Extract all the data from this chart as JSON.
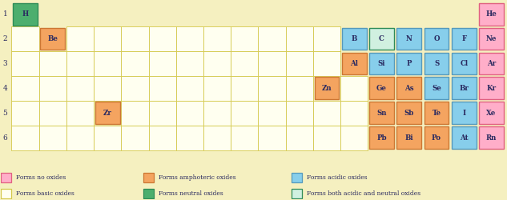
{
  "background_color": "#f5f0c0",
  "grid_color": "#d4c84a",
  "row_labels": [
    "1",
    "2",
    "3",
    "4",
    "5",
    "6"
  ],
  "colors": {
    "no_oxide": "#ffaec9",
    "amphoteric": "#f4a460",
    "acidic": "#87ceeb",
    "basic": "#fffff0",
    "neutral": "#4cae6e",
    "both": "#d0f0e0"
  },
  "border_colors": {
    "no_oxide": "#e06080",
    "amphoteric": "#cc7733",
    "acidic": "#5599bb",
    "basic": "#d4c84a",
    "neutral": "#2e8b57",
    "both": "#2e8b57"
  },
  "elements": [
    {
      "symbol": "H",
      "row": 0,
      "col": 0,
      "color": "neutral"
    },
    {
      "symbol": "He",
      "row": 0,
      "col": 17,
      "color": "no_oxide"
    },
    {
      "symbol": "Be",
      "row": 1,
      "col": 1,
      "color": "amphoteric"
    },
    {
      "symbol": "B",
      "row": 1,
      "col": 12,
      "color": "acidic"
    },
    {
      "symbol": "C",
      "row": 1,
      "col": 13,
      "color": "both"
    },
    {
      "symbol": "N",
      "row": 1,
      "col": 14,
      "color": "acidic"
    },
    {
      "symbol": "O",
      "row": 1,
      "col": 15,
      "color": "acidic"
    },
    {
      "symbol": "F",
      "row": 1,
      "col": 16,
      "color": "acidic"
    },
    {
      "symbol": "Ne",
      "row": 1,
      "col": 17,
      "color": "no_oxide"
    },
    {
      "symbol": "Al",
      "row": 2,
      "col": 12,
      "color": "amphoteric"
    },
    {
      "symbol": "Si",
      "row": 2,
      "col": 13,
      "color": "acidic"
    },
    {
      "symbol": "P",
      "row": 2,
      "col": 14,
      "color": "acidic"
    },
    {
      "symbol": "S",
      "row": 2,
      "col": 15,
      "color": "acidic"
    },
    {
      "symbol": "Cl",
      "row": 2,
      "col": 16,
      "color": "acidic"
    },
    {
      "symbol": "Ar",
      "row": 2,
      "col": 17,
      "color": "no_oxide"
    },
    {
      "symbol": "Zn",
      "row": 3,
      "col": 11,
      "color": "amphoteric"
    },
    {
      "symbol": "Ge",
      "row": 3,
      "col": 13,
      "color": "amphoteric"
    },
    {
      "symbol": "As",
      "row": 3,
      "col": 14,
      "color": "amphoteric"
    },
    {
      "symbol": "Se",
      "row": 3,
      "col": 15,
      "color": "acidic"
    },
    {
      "symbol": "Br",
      "row": 3,
      "col": 16,
      "color": "acidic"
    },
    {
      "symbol": "Kr",
      "row": 3,
      "col": 17,
      "color": "no_oxide"
    },
    {
      "symbol": "Zr",
      "row": 4,
      "col": 3,
      "color": "amphoteric"
    },
    {
      "symbol": "Sn",
      "row": 4,
      "col": 13,
      "color": "amphoteric"
    },
    {
      "symbol": "Sb",
      "row": 4,
      "col": 14,
      "color": "amphoteric"
    },
    {
      "symbol": "Te",
      "row": 4,
      "col": 15,
      "color": "amphoteric"
    },
    {
      "symbol": "I",
      "row": 4,
      "col": 16,
      "color": "acidic"
    },
    {
      "symbol": "Xe",
      "row": 4,
      "col": 17,
      "color": "no_oxide"
    },
    {
      "symbol": "Pb",
      "row": 5,
      "col": 13,
      "color": "amphoteric"
    },
    {
      "symbol": "Bi",
      "row": 5,
      "col": 14,
      "color": "amphoteric"
    },
    {
      "symbol": "Po",
      "row": 5,
      "col": 15,
      "color": "amphoteric"
    },
    {
      "symbol": "At",
      "row": 5,
      "col": 16,
      "color": "acidic"
    },
    {
      "symbol": "Rn",
      "row": 5,
      "col": 17,
      "color": "no_oxide"
    }
  ],
  "yellow_cells": [
    {
      "row": 1,
      "cols": [
        0
      ]
    },
    {
      "row": 1,
      "cols": [
        2,
        3,
        4,
        5,
        6,
        7,
        8,
        9,
        10,
        11
      ]
    },
    {
      "row": 2,
      "cols": [
        0,
        1,
        2,
        3,
        4,
        5,
        6,
        7,
        8,
        9,
        10,
        11
      ]
    },
    {
      "row": 3,
      "cols": [
        0,
        1,
        2,
        3,
        4,
        5,
        6,
        7,
        8,
        9,
        10,
        12
      ]
    },
    {
      "row": 4,
      "cols": [
        0,
        1,
        2,
        4,
        5,
        6,
        7,
        8,
        9,
        10,
        11,
        12
      ]
    },
    {
      "row": 5,
      "cols": [
        0,
        1,
        2,
        3,
        4,
        5,
        6,
        7,
        8,
        9,
        10,
        11,
        12
      ]
    }
  ],
  "legend": [
    {
      "label": "Forms no oxides",
      "color": "#ffaec9",
      "border": "#e06080"
    },
    {
      "label": "Forms amphoteric oxides",
      "color": "#f4a460",
      "border": "#cc7733"
    },
    {
      "label": "Forms acidic oxides",
      "color": "#87ceeb",
      "border": "#5599bb"
    },
    {
      "label": "Forms basic oxides",
      "color": "#fffff0",
      "border": "#d4c84a"
    },
    {
      "label": "Forms neutral oxides",
      "color": "#4cae6e",
      "border": "#2e8b57"
    },
    {
      "label": "Forms both acidic and neutral oxides",
      "color": "#d0f0e0",
      "border": "#2e8b57"
    }
  ],
  "figsize": [
    6.33,
    2.5
  ],
  "dpi": 100,
  "n_cols": 18,
  "n_rows": 6
}
